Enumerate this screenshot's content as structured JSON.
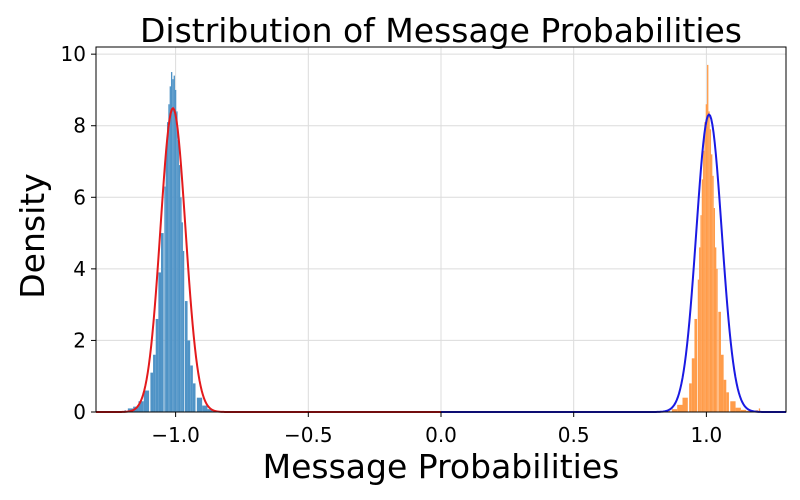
{
  "chart_data": {
    "type": "bar",
    "title": "Distribution of Message Probabilities",
    "xlabel": "Message Probabilities",
    "ylabel": "Density",
    "xlim": [
      -1.3,
      1.3
    ],
    "ylim": [
      0,
      10.2
    ],
    "x_ticks": [
      -1.0,
      -0.5,
      0.0,
      0.5,
      1.0
    ],
    "x_tick_labels": [
      "−1.0",
      "−0.5",
      "0.0",
      "0.5",
      "1.0"
    ],
    "y_ticks": [
      0,
      2,
      4,
      6,
      8,
      10
    ],
    "y_tick_labels": [
      "0",
      "2",
      "4",
      "6",
      "8",
      "10"
    ],
    "grid": true,
    "legend": "none",
    "series": [
      {
        "kind": "histogram",
        "color": "#4f93c6",
        "bins": [
          [
            -1.19,
            0.05
          ],
          [
            -1.17,
            0.1
          ],
          [
            -1.15,
            0.15
          ],
          [
            -1.13,
            0.3
          ],
          [
            -1.11,
            0.6
          ],
          [
            -1.09,
            1.1
          ],
          [
            -1.08,
            1.6
          ],
          [
            -1.07,
            2.6
          ],
          [
            -1.06,
            3.9
          ],
          [
            -1.05,
            5.0
          ],
          [
            -1.04,
            6.3
          ],
          [
            -1.035,
            7.4
          ],
          [
            -1.03,
            8.1
          ],
          [
            -1.025,
            8.6
          ],
          [
            -1.02,
            9.1
          ],
          [
            -1.015,
            9.5
          ],
          [
            -1.01,
            9.3
          ],
          [
            -1.005,
            9.4
          ],
          [
            -1.0,
            9.0
          ],
          [
            -0.995,
            8.4
          ],
          [
            -0.99,
            7.6
          ],
          [
            -0.985,
            6.9
          ],
          [
            -0.98,
            6.0
          ],
          [
            -0.975,
            5.3
          ],
          [
            -0.97,
            4.5
          ],
          [
            -0.96,
            3.1
          ],
          [
            -0.95,
            2.0
          ],
          [
            -0.94,
            1.3
          ],
          [
            -0.93,
            0.8
          ],
          [
            -0.91,
            0.4
          ],
          [
            -0.89,
            0.18
          ],
          [
            -0.87,
            0.08
          ],
          [
            -0.85,
            0.03
          ]
        ]
      },
      {
        "kind": "histogram",
        "color": "#ff9c4a",
        "bins": [
          [
            0.86,
            0.03
          ],
          [
            0.88,
            0.08
          ],
          [
            0.9,
            0.2
          ],
          [
            0.92,
            0.4
          ],
          [
            0.94,
            0.8
          ],
          [
            0.95,
            1.5
          ],
          [
            0.96,
            2.6
          ],
          [
            0.97,
            3.7
          ],
          [
            0.975,
            4.6
          ],
          [
            0.98,
            5.5
          ],
          [
            0.985,
            6.5
          ],
          [
            0.99,
            7.3
          ],
          [
            0.995,
            8.1
          ],
          [
            1.0,
            8.6
          ],
          [
            1.005,
            9.7
          ],
          [
            1.01,
            8.4
          ],
          [
            1.015,
            7.9
          ],
          [
            1.02,
            7.2
          ],
          [
            1.025,
            6.6
          ],
          [
            1.03,
            5.7
          ],
          [
            1.035,
            4.6
          ],
          [
            1.04,
            4.0
          ],
          [
            1.05,
            2.8
          ],
          [
            1.06,
            1.6
          ],
          [
            1.07,
            0.9
          ],
          [
            1.08,
            0.55
          ],
          [
            1.1,
            0.3
          ],
          [
            1.12,
            0.12
          ],
          [
            1.14,
            0.06
          ],
          [
            1.16,
            0.03
          ],
          [
            1.19,
            0.05
          ],
          [
            1.2,
            0.1
          ]
        ]
      },
      {
        "kind": "curve",
        "color": "#e31a1c",
        "mean": -1.01,
        "sd": 0.047,
        "x_range": [
          -1.3,
          0.0
        ]
      },
      {
        "kind": "curve",
        "color": "#1a1ae3",
        "mean": 1.01,
        "sd": 0.048,
        "x_range": [
          0.0,
          1.3
        ]
      }
    ]
  }
}
